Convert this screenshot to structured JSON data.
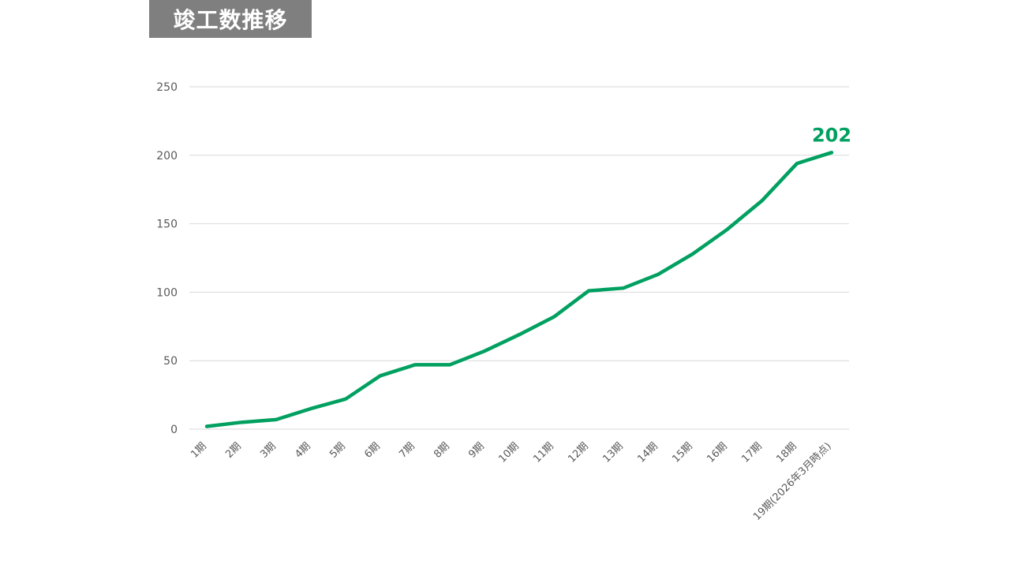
{
  "title": "竣工数推移",
  "colors": {
    "title_bg": "#7f7f7f",
    "line": "#00a060",
    "grid": "#d9d9d9",
    "tick": "#595959"
  },
  "chart_data": {
    "type": "line",
    "title": "竣工数推移",
    "categories": [
      "1期",
      "2期",
      "3期",
      "4期",
      "5期",
      "6期",
      "7期",
      "8期",
      "9期",
      "10期",
      "11期",
      "12期",
      "13期",
      "14期",
      "15期",
      "16期",
      "17期",
      "18期",
      "19期(2026年3月時点)"
    ],
    "series": [
      {
        "values": [
          2,
          5,
          7,
          15,
          22,
          39,
          47,
          47,
          57,
          69,
          82,
          101,
          103,
          113,
          128,
          146,
          167,
          194,
          202
        ]
      }
    ],
    "ylim": [
      0,
      250
    ],
    "yticks": [
      0,
      50,
      100,
      150,
      200,
      250
    ],
    "grid": true,
    "legend": "none",
    "data_labels": [
      {
        "index": 18,
        "text": "202"
      }
    ]
  }
}
